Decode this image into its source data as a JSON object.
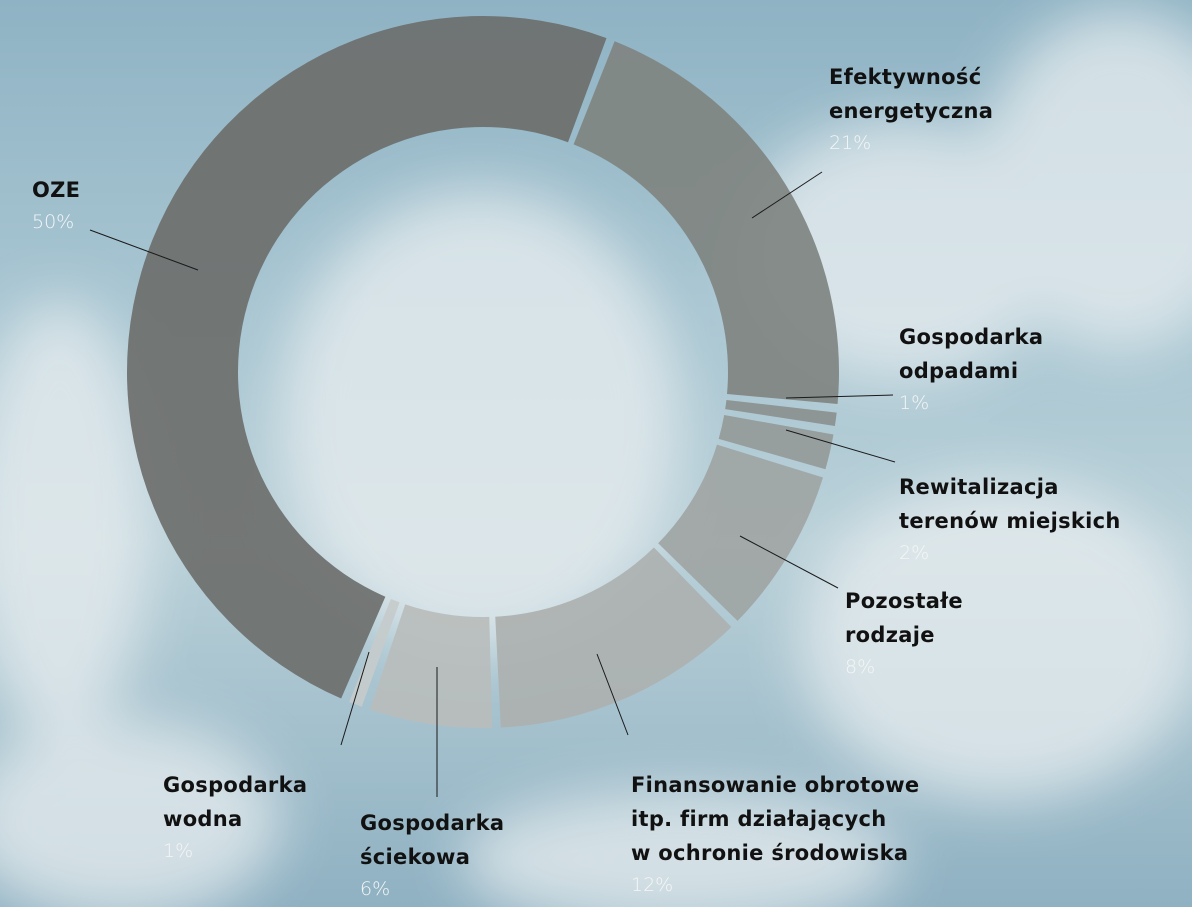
{
  "chart_data": {
    "type": "donut",
    "categories": [
      "Efektywność\nenergetyczna",
      "Gospodarka\nodpadami",
      "Rewitalizacja\nterenów miejskich",
      "Pozostałe\nrodzaje",
      "Finansowanie obrotowe\nitp. firm działających\nw ochronie środowiska",
      "Gospodarka\nściekowa",
      "Gospodarka\nwodna",
      "OZE"
    ],
    "values": [
      21,
      1,
      2,
      8,
      12,
      6,
      1,
      50
    ],
    "value_labels": [
      "21%",
      "1%",
      "2%",
      "8%",
      "12%",
      "6%",
      "1%",
      "50%"
    ],
    "colors": [
      "#7f8481",
      "#8b908f",
      "#959a99",
      "#a0a5a4",
      "#adb1b0",
      "#b9bdbc",
      "#c6cbcb",
      "#6c6f6c"
    ]
  }
}
